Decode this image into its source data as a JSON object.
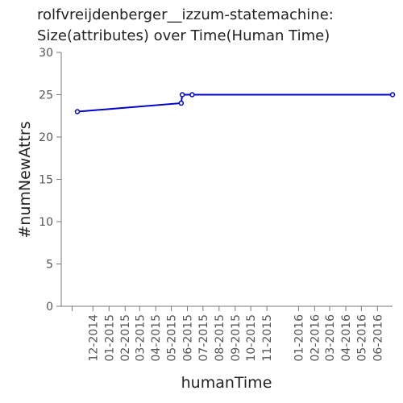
{
  "chart_data": {
    "type": "line",
    "title": [
      "rolfvreijdenberger__izzum-statemachine:",
      "Size(attributes) over Time(Human Time)"
    ],
    "xlabel": "humanTime",
    "ylabel": "#numNewAttrs",
    "ylim": [
      0,
      30
    ],
    "yticks": [
      "0",
      "5",
      "10",
      "15",
      "20",
      "25",
      "30"
    ],
    "xticks": [
      "12-2014",
      "01-2015",
      "02-2015",
      "03-2015",
      "04-2015",
      "05-2015",
      "06-2015",
      "07-2015",
      "08-2015",
      "09-2015",
      "10-2015",
      "11-2015",
      "01-2016",
      "02-2016",
      "03-2016",
      "04-2016",
      "05-2016",
      "06-2016"
    ],
    "grid": false,
    "series": [
      {
        "color": "#0000cc",
        "x": [
          "2014-11-01",
          "2015-05-20",
          "2015-05-22",
          "2015-06-10",
          "2016-06-30"
        ],
        "y": [
          23,
          24,
          25,
          25,
          25
        ]
      }
    ]
  }
}
